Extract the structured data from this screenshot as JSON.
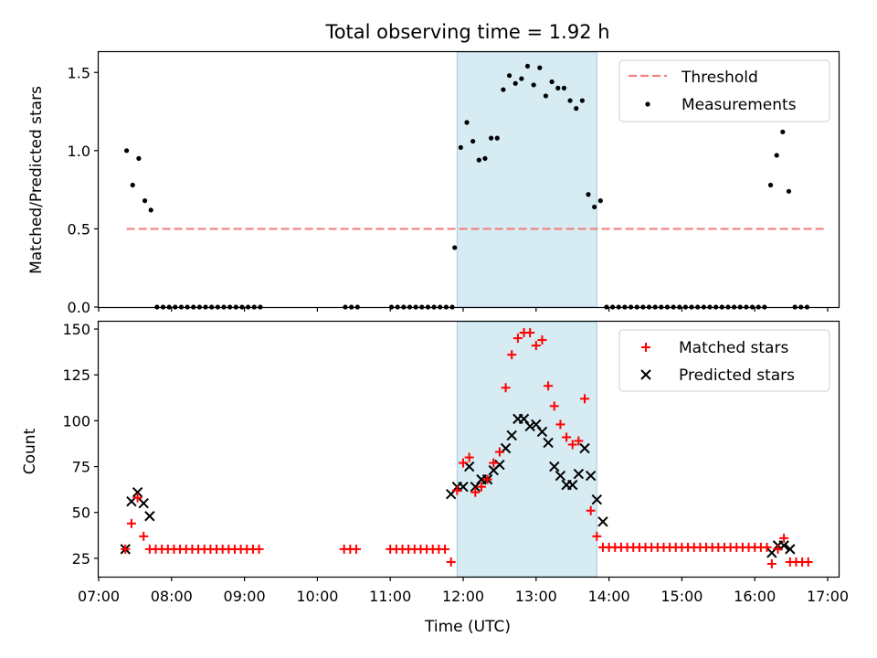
{
  "title": "Total observing time = 1.92 h",
  "colors": {
    "threshold": "#f08080",
    "measurement": "#000000",
    "matched": "#ff0000",
    "predicted": "#000000",
    "shade": "#add8e6"
  },
  "chart_data": [
    {
      "type": "scatter",
      "ylabel": "Matched/Predicted stars",
      "xlim": [
        "07:00",
        "17:09"
      ],
      "ylim": [
        0,
        1.63
      ],
      "yticks": [
        "0.0",
        "0.5",
        "1.0",
        "1.5"
      ],
      "grid": false,
      "legend_position": "top-right",
      "shaded_interval": [
        "11:55",
        "13:50"
      ],
      "threshold": {
        "name": "Threshold",
        "value": 0.5,
        "x_range": [
          "07:23",
          "16:58"
        ]
      },
      "series": [
        {
          "name": "Measurements",
          "points": [
            [
              "07:23",
              1.0
            ],
            [
              "07:28",
              0.78
            ],
            [
              "07:33",
              0.95
            ],
            [
              "07:38",
              0.68
            ],
            [
              "07:43",
              0.62
            ],
            [
              "07:48",
              0
            ],
            [
              "07:53",
              0
            ],
            [
              "07:58",
              0
            ],
            [
              "08:03",
              0
            ],
            [
              "08:08",
              0
            ],
            [
              "08:13",
              0
            ],
            [
              "08:18",
              0
            ],
            [
              "08:23",
              0
            ],
            [
              "08:28",
              0
            ],
            [
              "08:33",
              0
            ],
            [
              "08:38",
              0
            ],
            [
              "08:43",
              0
            ],
            [
              "08:48",
              0
            ],
            [
              "08:53",
              0
            ],
            [
              "08:58",
              0
            ],
            [
              "09:03",
              0
            ],
            [
              "09:08",
              0
            ],
            [
              "09:13",
              0
            ],
            [
              "10:23",
              0
            ],
            [
              "10:28",
              0
            ],
            [
              "10:33",
              0
            ],
            [
              "11:01",
              0
            ],
            [
              "11:06",
              0
            ],
            [
              "11:11",
              0
            ],
            [
              "11:16",
              0
            ],
            [
              "11:21",
              0
            ],
            [
              "11:26",
              0
            ],
            [
              "11:31",
              0
            ],
            [
              "11:36",
              0
            ],
            [
              "11:41",
              0
            ],
            [
              "11:46",
              0
            ],
            [
              "11:51",
              0
            ],
            [
              "11:53",
              0.38
            ],
            [
              "11:58",
              1.02
            ],
            [
              "12:03",
              1.18
            ],
            [
              "12:08",
              1.06
            ],
            [
              "12:13",
              0.94
            ],
            [
              "12:18",
              0.95
            ],
            [
              "12:23",
              1.08
            ],
            [
              "12:28",
              1.08
            ],
            [
              "12:33",
              1.39
            ],
            [
              "12:38",
              1.48
            ],
            [
              "12:43",
              1.43
            ],
            [
              "12:48",
              1.46
            ],
            [
              "12:53",
              1.54
            ],
            [
              "12:58",
              1.42
            ],
            [
              "13:03",
              1.53
            ],
            [
              "13:08",
              1.35
            ],
            [
              "13:13",
              1.44
            ],
            [
              "13:18",
              1.4
            ],
            [
              "13:23",
              1.4
            ],
            [
              "13:28",
              1.32
            ],
            [
              "13:33",
              1.27
            ],
            [
              "13:38",
              1.32
            ],
            [
              "13:43",
              0.72
            ],
            [
              "13:48",
              0.64
            ],
            [
              "13:53",
              0.68
            ],
            [
              "13:58",
              0
            ],
            [
              "14:03",
              0
            ],
            [
              "14:08",
              0
            ],
            [
              "14:13",
              0
            ],
            [
              "14:18",
              0
            ],
            [
              "14:23",
              0
            ],
            [
              "14:28",
              0
            ],
            [
              "14:33",
              0
            ],
            [
              "14:38",
              0
            ],
            [
              "14:43",
              0
            ],
            [
              "14:48",
              0
            ],
            [
              "14:53",
              0
            ],
            [
              "14:58",
              0
            ],
            [
              "15:03",
              0
            ],
            [
              "15:08",
              0
            ],
            [
              "15:13",
              0
            ],
            [
              "15:18",
              0
            ],
            [
              "15:23",
              0
            ],
            [
              "15:28",
              0
            ],
            [
              "15:33",
              0
            ],
            [
              "15:38",
              0
            ],
            [
              "15:43",
              0
            ],
            [
              "15:48",
              0
            ],
            [
              "15:53",
              0
            ],
            [
              "15:58",
              0
            ],
            [
              "16:03",
              0
            ],
            [
              "16:08",
              0
            ],
            [
              "16:13",
              0.78
            ],
            [
              "16:18",
              0.97
            ],
            [
              "16:23",
              1.12
            ],
            [
              "16:28",
              0.74
            ],
            [
              "16:33",
              0
            ],
            [
              "16:38",
              0
            ],
            [
              "16:43",
              0
            ]
          ]
        }
      ]
    },
    {
      "type": "scatter",
      "xlabel": "Time (UTC)",
      "ylabel": "Count",
      "xlim": [
        "07:00",
        "17:09"
      ],
      "ylim": [
        15,
        154
      ],
      "yticks": [
        "25",
        "50",
        "75",
        "100",
        "125",
        "150"
      ],
      "xticks": [
        "07:00",
        "08:00",
        "09:00",
        "10:00",
        "11:00",
        "12:00",
        "13:00",
        "14:00",
        "15:00",
        "16:00",
        "17:00"
      ],
      "grid": false,
      "legend_position": "top-right",
      "shaded_interval": [
        "11:55",
        "13:50"
      ],
      "series": [
        {
          "name": "Matched stars",
          "points": [
            [
              "07:22",
              30
            ],
            [
              "07:27",
              44
            ],
            [
              "07:32",
              58
            ],
            [
              "07:37",
              37
            ],
            [
              "07:42",
              30
            ],
            [
              "07:47",
              30
            ],
            [
              "07:52",
              30
            ],
            [
              "07:57",
              30
            ],
            [
              "08:02",
              30
            ],
            [
              "08:07",
              30
            ],
            [
              "08:12",
              30
            ],
            [
              "08:17",
              30
            ],
            [
              "08:22",
              30
            ],
            [
              "08:27",
              30
            ],
            [
              "08:32",
              30
            ],
            [
              "08:37",
              30
            ],
            [
              "08:42",
              30
            ],
            [
              "08:47",
              30
            ],
            [
              "08:52",
              30
            ],
            [
              "08:57",
              30
            ],
            [
              "09:02",
              30
            ],
            [
              "09:07",
              30
            ],
            [
              "09:12",
              30
            ],
            [
              "10:22",
              30
            ],
            [
              "10:27",
              30
            ],
            [
              "10:32",
              30
            ],
            [
              "11:00",
              30
            ],
            [
              "11:05",
              30
            ],
            [
              "11:10",
              30
            ],
            [
              "11:15",
              30
            ],
            [
              "11:20",
              30
            ],
            [
              "11:25",
              30
            ],
            [
              "11:30",
              30
            ],
            [
              "11:35",
              30
            ],
            [
              "11:40",
              30
            ],
            [
              "11:45",
              30
            ],
            [
              "11:50",
              23
            ],
            [
              "11:55",
              62
            ],
            [
              "12:00",
              77
            ],
            [
              "12:05",
              80
            ],
            [
              "12:10",
              61
            ],
            [
              "12:15",
              64
            ],
            [
              "12:20",
              68
            ],
            [
              "12:25",
              77
            ],
            [
              "12:30",
              83
            ],
            [
              "12:35",
              118
            ],
            [
              "12:40",
              136
            ],
            [
              "12:45",
              145
            ],
            [
              "12:50",
              148
            ],
            [
              "12:55",
              148
            ],
            [
              "13:00",
              141
            ],
            [
              "13:05",
              144
            ],
            [
              "13:10",
              119
            ],
            [
              "13:15",
              108
            ],
            [
              "13:20",
              98
            ],
            [
              "13:25",
              91
            ],
            [
              "13:30",
              87
            ],
            [
              "13:35",
              89
            ],
            [
              "13:40",
              112
            ],
            [
              "13:45",
              51
            ],
            [
              "13:50",
              37
            ],
            [
              "13:55",
              31
            ],
            [
              "14:00",
              31
            ],
            [
              "14:05",
              31
            ],
            [
              "14:10",
              31
            ],
            [
              "14:15",
              31
            ],
            [
              "14:20",
              31
            ],
            [
              "14:25",
              31
            ],
            [
              "14:30",
              31
            ],
            [
              "14:35",
              31
            ],
            [
              "14:40",
              31
            ],
            [
              "14:45",
              31
            ],
            [
              "14:50",
              31
            ],
            [
              "14:55",
              31
            ],
            [
              "15:00",
              31
            ],
            [
              "15:05",
              31
            ],
            [
              "15:10",
              31
            ],
            [
              "15:15",
              31
            ],
            [
              "15:20",
              31
            ],
            [
              "15:25",
              31
            ],
            [
              "15:30",
              31
            ],
            [
              "15:35",
              31
            ],
            [
              "15:40",
              31
            ],
            [
              "15:45",
              31
            ],
            [
              "15:50",
              31
            ],
            [
              "15:55",
              31
            ],
            [
              "16:00",
              31
            ],
            [
              "16:05",
              31
            ],
            [
              "16:10",
              31
            ],
            [
              "16:14",
              22
            ],
            [
              "16:19",
              30
            ],
            [
              "16:24",
              36
            ],
            [
              "16:29",
              23
            ],
            [
              "16:34",
              23
            ],
            [
              "16:39",
              23
            ],
            [
              "16:44",
              23
            ]
          ]
        },
        {
          "name": "Predicted stars",
          "points": [
            [
              "07:22",
              30
            ],
            [
              "07:27",
              56
            ],
            [
              "07:32",
              61
            ],
            [
              "07:37",
              55
            ],
            [
              "07:42",
              48
            ],
            [
              "11:50",
              60
            ],
            [
              "11:55",
              64
            ],
            [
              "12:00",
              64
            ],
            [
              "12:05",
              75
            ],
            [
              "12:10",
              64
            ],
            [
              "12:15",
              68
            ],
            [
              "12:20",
              68
            ],
            [
              "12:25",
              73
            ],
            [
              "12:30",
              76
            ],
            [
              "12:35",
              85
            ],
            [
              "12:40",
              92
            ],
            [
              "12:45",
              101
            ],
            [
              "12:50",
              101
            ],
            [
              "12:55",
              97
            ],
            [
              "13:00",
              98
            ],
            [
              "13:05",
              94
            ],
            [
              "13:10",
              88
            ],
            [
              "13:15",
              75
            ],
            [
              "13:20",
              70
            ],
            [
              "13:25",
              65
            ],
            [
              "13:30",
              65
            ],
            [
              "13:35",
              71
            ],
            [
              "13:40",
              85
            ],
            [
              "13:45",
              70
            ],
            [
              "13:50",
              57
            ],
            [
              "13:55",
              45
            ],
            [
              "16:14",
              28
            ],
            [
              "16:19",
              32
            ],
            [
              "16:24",
              32
            ],
            [
              "16:29",
              30
            ]
          ]
        }
      ]
    }
  ]
}
